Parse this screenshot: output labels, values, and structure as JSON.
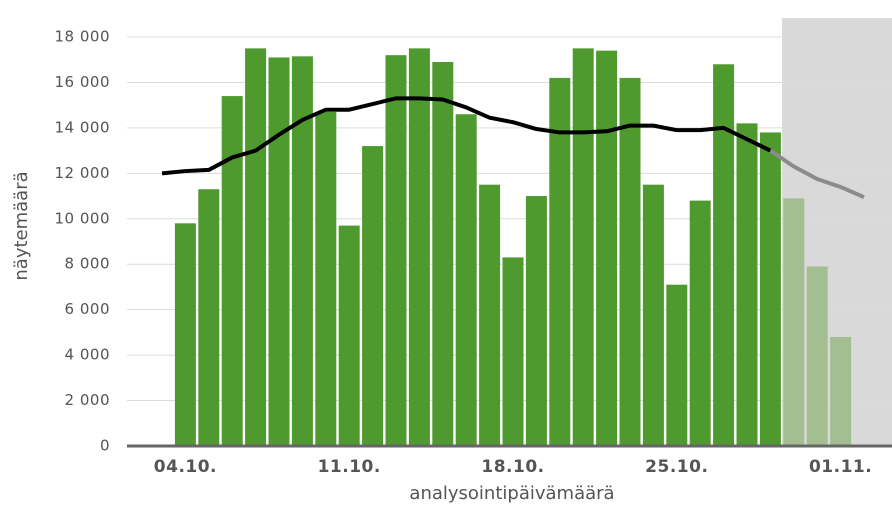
{
  "chart_data": {
    "type": "bar-line",
    "x_label": "analysointipäivämäärä",
    "y_label": "näytemäärä",
    "categories": [
      null,
      "04.10.",
      null,
      null,
      null,
      null,
      null,
      null,
      "11.10.",
      null,
      null,
      null,
      null,
      null,
      null,
      "18.10.",
      null,
      null,
      null,
      null,
      null,
      null,
      "25.10.",
      null,
      null,
      null,
      null,
      null,
      null,
      "01.11.",
      null
    ],
    "bars": {
      "color": "#4f9a2e",
      "shaded_color": "#a3bf91",
      "values": [
        null,
        9800,
        11300,
        15400,
        17500,
        17100,
        17150,
        14700,
        9700,
        13200,
        17200,
        17500,
        16900,
        14600,
        11500,
        8300,
        11000,
        16200,
        17500,
        17400,
        16200,
        11500,
        7100,
        10800,
        16800,
        14200,
        13800,
        10900,
        7900,
        4800,
        null
      ]
    },
    "line": {
      "color": "#000000",
      "shaded_color": "#8c8c8c",
      "values": [
        12000,
        12100,
        12150,
        12700,
        13000,
        13700,
        14350,
        14800,
        14800,
        15050,
        15300,
        15300,
        15250,
        14900,
        14450,
        14250,
        13950,
        13800,
        13800,
        13850,
        14100,
        14100,
        13900,
        13900,
        14000,
        13500,
        13000,
        12300,
        11750,
        11400,
        10950
      ]
    },
    "shaded_from": 27,
    "shade_color": "#d9d9d9",
    "ylim": [
      0,
      18000
    ],
    "yticks": [
      0,
      {
        "value": 2000,
        "label": "2 000"
      },
      {
        "value": 4000,
        "label": "4 000"
      },
      {
        "value": 6000,
        "label": "6 000"
      },
      {
        "value": 8000,
        "label": "8 000"
      },
      {
        "value": 10000,
        "label": "10 000"
      },
      {
        "value": 12000,
        "label": "12 000"
      },
      {
        "value": 14000,
        "label": "14 000"
      },
      {
        "value": 16000,
        "label": "16 000"
      },
      {
        "value": 18000,
        "label": "18 000"
      }
    ],
    "grid": true
  }
}
